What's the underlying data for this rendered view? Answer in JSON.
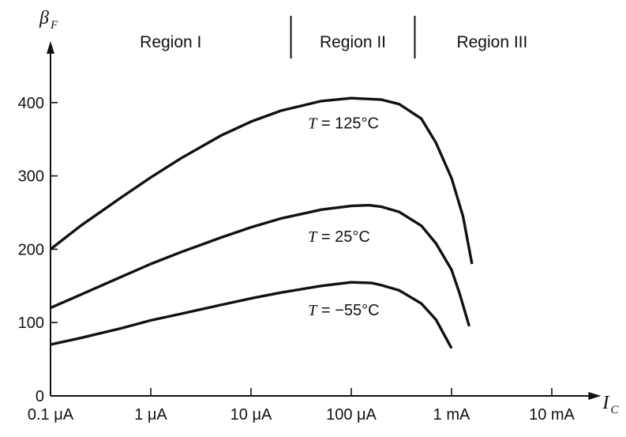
{
  "chart_data": {
    "type": "line",
    "title": "",
    "ylabel": "β",
    "ylabel_sub": "F",
    "xlabel": "I",
    "xlabel_sub": "C",
    "x_scale": "log",
    "xlim_amps": [
      1e-07,
      0.015
    ],
    "ylim": [
      0,
      450
    ],
    "x_ticks": [
      {
        "value": 1e-07,
        "label": "0.1 μA"
      },
      {
        "value": 1e-06,
        "label": "1 μA"
      },
      {
        "value": 1e-05,
        "label": "10 μA"
      },
      {
        "value": 0.0001,
        "label": "100 μA"
      },
      {
        "value": 0.001,
        "label": "1 mA"
      },
      {
        "value": 0.01,
        "label": "10 mA"
      }
    ],
    "y_ticks": [
      {
        "value": 0,
        "label": "0"
      },
      {
        "value": 100,
        "label": "100"
      },
      {
        "value": 200,
        "label": "200"
      },
      {
        "value": 300,
        "label": "300"
      },
      {
        "value": 400,
        "label": "400"
      }
    ],
    "regions": [
      {
        "label": "Region I",
        "from": 1e-07,
        "to": 2.5e-05
      },
      {
        "label": "Region II",
        "from": 2.5e-05,
        "to": 0.00043
      },
      {
        "label": "Region III",
        "from": 0.00043,
        "to": 0.015
      }
    ],
    "region_boundaries": [
      2.5e-05,
      0.00043
    ],
    "series": [
      {
        "name": "T = 125°C",
        "label_prefix": "T",
        "label_value": " = 125°C",
        "label_at": {
          "x": 0.00011,
          "y": 365
        },
        "points": [
          [
            1e-07,
            200
          ],
          [
            2e-07,
            232
          ],
          [
            5e-07,
            270
          ],
          [
            1e-06,
            298
          ],
          [
            2e-06,
            324
          ],
          [
            5e-06,
            355
          ],
          [
            1e-05,
            374
          ],
          [
            2e-05,
            389
          ],
          [
            5e-05,
            402
          ],
          [
            0.0001,
            406
          ],
          [
            0.0002,
            404
          ],
          [
            0.0003,
            398
          ],
          [
            0.0005,
            378
          ],
          [
            0.0007,
            345
          ],
          [
            0.001,
            297
          ],
          [
            0.0013,
            245
          ],
          [
            0.0016,
            180
          ]
        ]
      },
      {
        "name": "T = 25°C",
        "label_prefix": "T",
        "label_value": " = 25°C",
        "label_at": {
          "x": 0.00011,
          "y": 210
        },
        "points": [
          [
            1e-07,
            120
          ],
          [
            2e-07,
            138
          ],
          [
            5e-07,
            162
          ],
          [
            1e-06,
            180
          ],
          [
            2e-06,
            196
          ],
          [
            5e-06,
            216
          ],
          [
            1e-05,
            230
          ],
          [
            2e-05,
            242
          ],
          [
            5e-05,
            254
          ],
          [
            0.0001,
            259
          ],
          [
            0.00015,
            260
          ],
          [
            0.0002,
            258
          ],
          [
            0.0003,
            251
          ],
          [
            0.0005,
            232
          ],
          [
            0.0007,
            208
          ],
          [
            0.001,
            172
          ],
          [
            0.0012,
            140
          ],
          [
            0.0015,
            95
          ]
        ]
      },
      {
        "name": "T = −55°C",
        "label_prefix": "T",
        "label_value": " = −55°C",
        "label_at": {
          "x": 0.00011,
          "y": 110
        },
        "points": [
          [
            1e-07,
            70
          ],
          [
            2e-07,
            79
          ],
          [
            5e-07,
            92
          ],
          [
            1e-06,
            103
          ],
          [
            2e-06,
            112
          ],
          [
            5e-06,
            124
          ],
          [
            1e-05,
            133
          ],
          [
            2e-05,
            141
          ],
          [
            5e-05,
            150
          ],
          [
            0.0001,
            155
          ],
          [
            0.00016,
            154
          ],
          [
            0.0002,
            151
          ],
          [
            0.0003,
            144
          ],
          [
            0.0005,
            126
          ],
          [
            0.0007,
            104
          ],
          [
            0.001,
            65
          ]
        ]
      }
    ]
  }
}
